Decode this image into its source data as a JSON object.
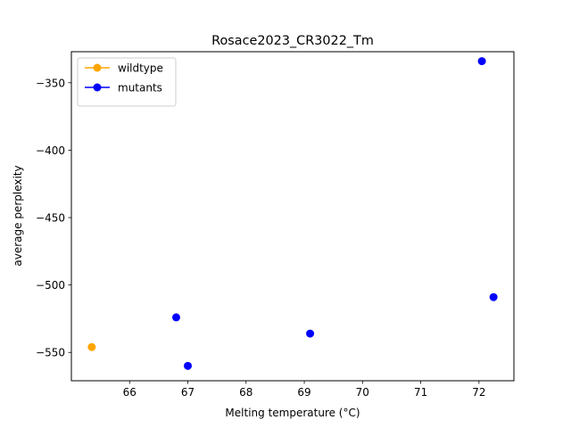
{
  "chart_data": {
    "type": "scatter",
    "title": "Rosace2023_CR3022_Tm",
    "xlabel": "Melting temperature (°C)",
    "ylabel": "average perplexity",
    "xlim": [
      65.0,
      72.6
    ],
    "ylim": [
      -571,
      -327
    ],
    "xticks": [
      66,
      67,
      68,
      69,
      70,
      71,
      72
    ],
    "yticks": [
      -350,
      -400,
      -450,
      -500,
      -550
    ],
    "xtick_labels": [
      "66",
      "67",
      "68",
      "69",
      "70",
      "71",
      "72"
    ],
    "ytick_labels": [
      "−350",
      "−400",
      "−450",
      "−500",
      "−550"
    ],
    "legend": "top-left",
    "grid": false,
    "series": [
      {
        "name": "wildtype",
        "color": "#ffa500",
        "points": [
          {
            "x": 65.35,
            "y": -546
          }
        ]
      },
      {
        "name": "mutants",
        "color": "#0000ff",
        "points": [
          {
            "x": 66.8,
            "y": -524
          },
          {
            "x": 67.0,
            "y": -560
          },
          {
            "x": 69.1,
            "y": -536
          },
          {
            "x": 72.05,
            "y": -334
          },
          {
            "x": 72.25,
            "y": -509
          }
        ]
      }
    ]
  }
}
